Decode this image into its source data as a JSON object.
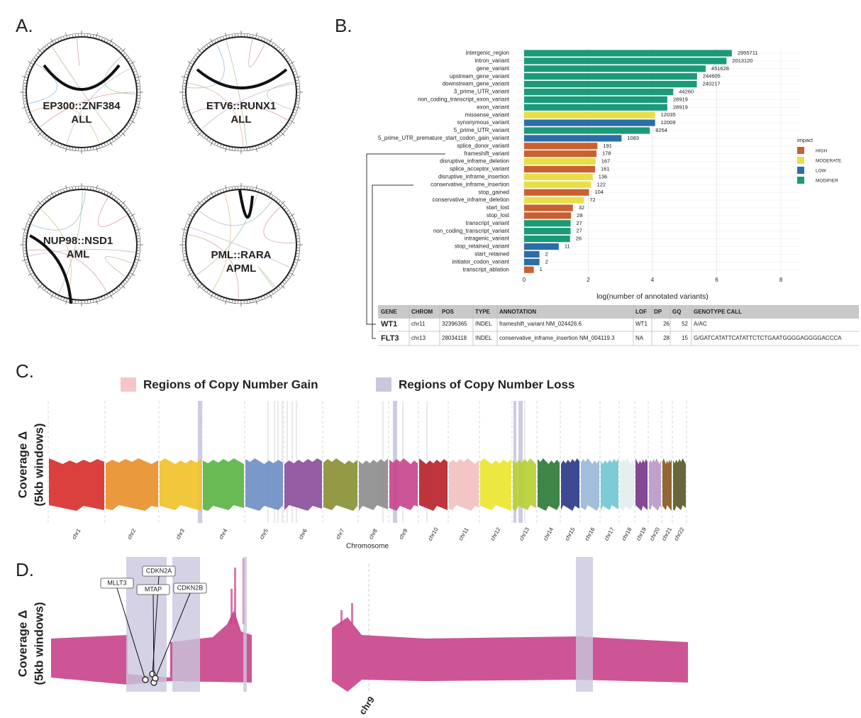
{
  "panel_labels": [
    "A.",
    "B.",
    "C.",
    "D."
  ],
  "fusions": [
    {
      "name": "EP300::ZNF384",
      "disease": "ALL"
    },
    {
      "name": "ETV6::RUNX1",
      "disease": "ALL"
    },
    {
      "name": "NUP98::NSD1",
      "disease": "AML"
    },
    {
      "name": "PML::RARA",
      "disease": "APML"
    }
  ],
  "chart_data": [
    {
      "type": "hbar",
      "categories": [
        "intergenic_region",
        "intron_variant",
        "gene_variant",
        "upstream_gene_variant",
        "downstream_gene_variant",
        "3_prime_UTR_variant",
        "non_coding_transcript_exon_variant",
        "exon_variant",
        "missense_variant",
        "synonymous_variant",
        "5_prime_UTR_variant",
        "5_prime_UTR_premature_start_codon_gain_variant",
        "splice_donor_variant",
        "frameshift_variant",
        "disruptive_inframe_deletion",
        "splice_acceptor_variant",
        "disruptive_inframe_insertion",
        "conservative_inframe_insertion",
        "stop_gained",
        "conservative_inframe_deletion",
        "start_lost",
        "stop_lost",
        "transcript_variant",
        "non_coding_transcript_variant",
        "intragenic_variant",
        "stop_retained_variant",
        "start_retained",
        "initiator_codon_variant",
        "transcript_ablation"
      ],
      "values": [
        6.471,
        6.304,
        5.655,
        5.388,
        5.381,
        4.646,
        4.461,
        4.461,
        4.08,
        4.08,
        3.917,
        3.035,
        2.283,
        2.253,
        2.225,
        2.21,
        2.137,
        2.09,
        2.021,
        1.863,
        1.519,
        1.462,
        1.447,
        1.447,
        1.431,
        1.079,
        0.477,
        0.477,
        0.301
      ],
      "value_labels": [
        "2955711",
        "2013120",
        "451628",
        "244605",
        "240217",
        "44260",
        "28919",
        "28919",
        "12035",
        "12009",
        "8254",
        "1083",
        "191",
        "178",
        "167",
        "161",
        "136",
        "122",
        "104",
        "72",
        "32",
        "28",
        "27",
        "27",
        "26",
        "11",
        "2",
        "2",
        "1"
      ],
      "impact": [
        "MODIFIER",
        "MODIFIER",
        "MODIFIER",
        "MODIFIER",
        "MODIFIER",
        "MODIFIER",
        "MODIFIER",
        "MODIFIER",
        "MODERATE",
        "LOW",
        "MODIFIER",
        "LOW",
        "HIGH",
        "HIGH",
        "MODERATE",
        "HIGH",
        "MODERATE",
        "MODERATE",
        "HIGH",
        "MODERATE",
        "HIGH",
        "HIGH",
        "MODIFIER",
        "MODIFIER",
        "MODIFIER",
        "LOW",
        "LOW",
        "LOW",
        "HIGH"
      ],
      "legend": {
        "title": "impact",
        "levels": [
          {
            "name": "HIGH",
            "color": "#c9602f"
          },
          {
            "name": "MODERATE",
            "color": "#e8df48"
          },
          {
            "name": "LOW",
            "color": "#2a6ea8"
          },
          {
            "name": "MODIFIER",
            "color": "#1a9a78"
          }
        ]
      },
      "xlabel": "log(number of annotated variants)",
      "xlim": [
        -0.25,
        8.6
      ],
      "xticks": [
        0,
        2,
        4,
        6,
        8
      ],
      "grid": true
    },
    {
      "type": "manhattan",
      "legend": [
        {
          "name": "Regions of Copy Number Gain",
          "color": "#f5c6c6"
        },
        {
          "name": "Regions of Copy Number Loss",
          "color": "#c9c7dd"
        }
      ],
      "categories": [
        "chr1",
        "chr2",
        "chr3",
        "chr4",
        "chr5",
        "chr6",
        "chr7",
        "chr8",
        "chr9",
        "chr10",
        "chr11",
        "chr12",
        "chr13",
        "chr14",
        "chr15",
        "chr16",
        "chr17",
        "chr18",
        "chr19",
        "chr20",
        "chr21",
        "chr22"
      ],
      "colors": [
        "#d7302c",
        "#e8912b",
        "#f0c22a",
        "#5ab543",
        "#6f8fc4",
        "#8c4f9b",
        "#8a9035",
        "#8d8d8d",
        "#c8468f",
        "#b8242c",
        "#f2c0c0",
        "#ece630",
        "#b8d035",
        "#2f7a3a",
        "#2d3a8a",
        "#9ab8d8",
        "#70c8d0",
        "#e4eeee",
        "#7a3a8a",
        "#b89ac8",
        "#8a5a20",
        "#5a5a2a"
      ],
      "ylabel": [
        "Coverage Δ",
        "(5kb windows)"
      ],
      "xlabel": "Chromosome"
    },
    {
      "type": "region",
      "genes": [
        "MLLT3",
        "CDKN2A",
        "MTAP",
        "CDKN2B"
      ],
      "xlabel": "chr9",
      "ylabel": [
        "Coverage Δ",
        "(5kb windows)"
      ],
      "color": "#c8428a",
      "loss_color": "#c9c7dd"
    }
  ],
  "variant_table": {
    "columns": [
      "GENE",
      "CHROM",
      "POS",
      "TYPE",
      "ANNOTATION",
      "LOF",
      "DP",
      "GQ",
      "GENOTYPE CALL"
    ],
    "rows": [
      [
        "WT1",
        "chr11",
        32396365,
        "INDEL",
        "frameshift_variant NM_024426.6",
        "WT1",
        26,
        52,
        "A/AC"
      ],
      [
        "FLT3",
        "chr13",
        28034118,
        "INDEL",
        "conservative_inframe_insertion NM_004119.3",
        "NA",
        28,
        15,
        "G/GATCATATTCATATTCTCTGAATGGGGAGGGGACCCA"
      ]
    ]
  }
}
